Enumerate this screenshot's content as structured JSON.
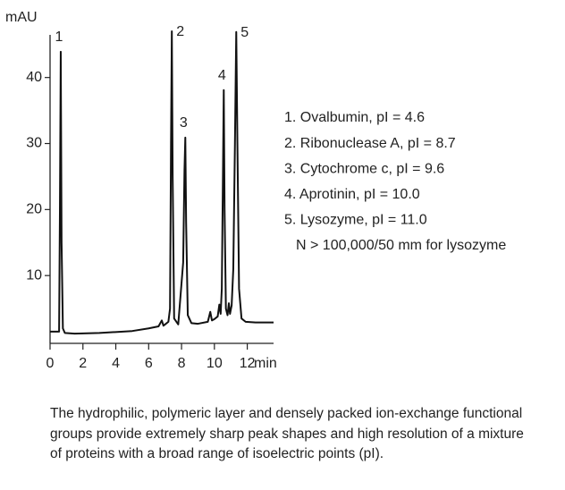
{
  "chart_data": {
    "type": "line",
    "ylabel": "mAU",
    "xlabel": "min",
    "x": [
      0,
      0.55,
      0.6,
      0.65,
      0.7,
      0.78,
      0.9,
      1.5,
      3,
      5,
      6,
      6.6,
      6.8,
      6.9,
      7.0,
      7.2,
      7.3,
      7.36,
      7.41,
      7.46,
      7.55,
      7.8,
      8.1,
      8.18,
      8.23,
      8.28,
      8.38,
      8.6,
      9,
      9.6,
      9.75,
      9.85,
      10.0,
      10.2,
      10.3,
      10.38,
      10.45,
      10.52,
      10.57,
      10.62,
      10.7,
      10.8,
      10.88,
      10.95,
      11.05,
      11.15,
      11.25,
      11.33,
      11.4,
      11.5,
      11.65,
      11.9,
      12.5,
      13.6
    ],
    "values": [
      1.5,
      1.5,
      20,
      43.9,
      15,
      2,
      1.3,
      1.2,
      1.3,
      1.6,
      2.0,
      2.3,
      3.2,
      2.4,
      2.6,
      3,
      5,
      30,
      47,
      25,
      3.5,
      2.6,
      12,
      26,
      30.9,
      18,
      4,
      2.8,
      2.7,
      3.0,
      4.5,
      3.2,
      3.4,
      3.8,
      5.6,
      4.2,
      8,
      25,
      38.1,
      20,
      5,
      4,
      5.8,
      4.2,
      5.5,
      11,
      30,
      46.9,
      30,
      8,
      3.5,
      3.0,
      2.9,
      2.9
    ],
    "color": "#111111",
    "xlim": [
      0,
      13.6
    ],
    "ylim": [
      0,
      47
    ],
    "xticks": [
      0,
      2,
      4,
      6,
      8,
      10,
      12
    ],
    "yticks": [
      10,
      20,
      30,
      40
    ],
    "grid": false,
    "annotations": [
      {
        "text": "1",
        "x": 0.65,
        "y": 43.9,
        "position": "above"
      },
      {
        "text": "2",
        "x": 7.41,
        "y": 47,
        "position": "right"
      },
      {
        "text": "3",
        "x": 8.23,
        "y": 30.9,
        "position": "above"
      },
      {
        "text": "4",
        "x": 10.57,
        "y": 38.1,
        "position": "above"
      },
      {
        "text": "5",
        "x": 11.33,
        "y": 46.9,
        "position": "right"
      }
    ],
    "notes": [
      "1.  Ovalbumin, pI = 4.6",
      "2.  Ribonuclease A, pI = 8.7",
      "3.  Cytochrome c, pI = 9.6",
      "4.  Aprotinin, pI = 10.0",
      "5.  Lysozyme, pI = 11.0",
      "N > 100,000/50 mm for lysozyme"
    ]
  },
  "caption": "The hydrophilic, polymeric layer and densely packed ion-exchange functional groups provide extremely sharp peak shapes and high resolution of a mixture of proteins with a broad range of isoelectric points (pI)."
}
